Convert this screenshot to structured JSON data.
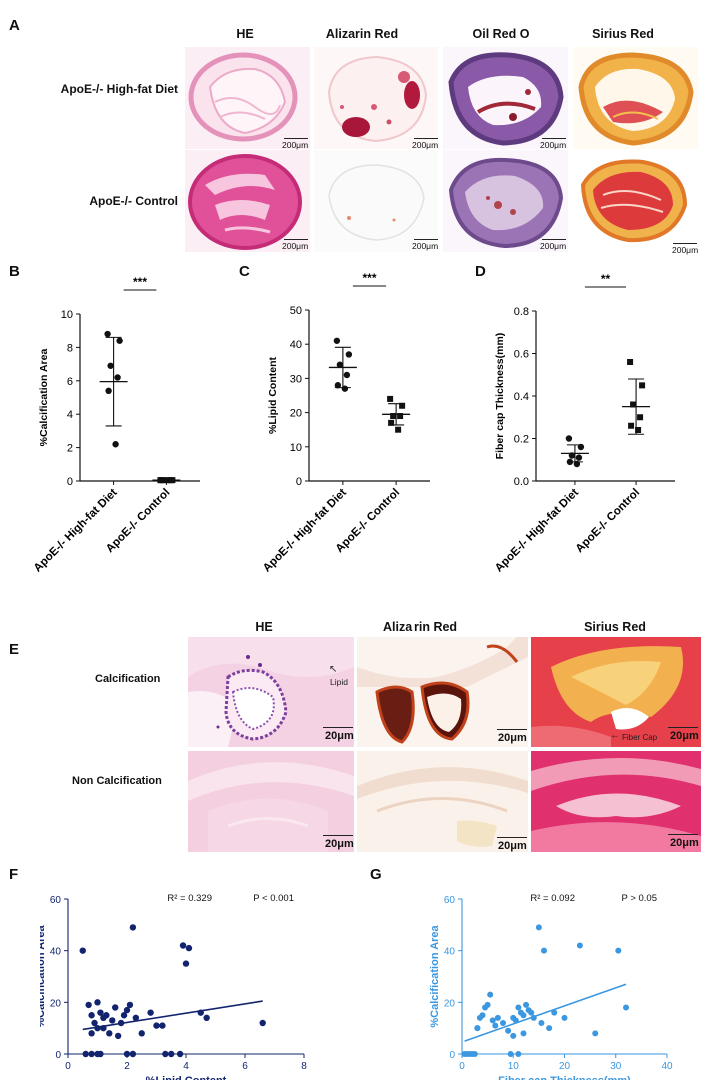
{
  "panel_letters": {
    "a": "A",
    "b": "B",
    "c": "C",
    "d": "D",
    "e": "E",
    "f": "F",
    "g": "G"
  },
  "panel_a": {
    "columns": [
      "HE",
      "Alizarin Red",
      "Oil Red O",
      "Sirius Red"
    ],
    "rows": [
      "ApoE-/- High-fat Diet",
      "ApoE-/- Control"
    ],
    "scale_label": "200μm"
  },
  "panel_e": {
    "columns": [
      "HE",
      "Aliza",
      "rin Red",
      "Sirius Red"
    ],
    "rows": [
      "Calcification",
      "Non Calcification"
    ],
    "scale_label": "20μm",
    "annotations": {
      "lipid": "Lipid",
      "fiber_cap": "Fiber Cap"
    }
  },
  "colors": {
    "he": "#e66da8",
    "alizarin": "#b0102a",
    "oilred": "#7a4a96",
    "sirius": "#d9302f",
    "navy": "#12246e",
    "lightblue": "#3b97e0"
  },
  "chart_data": [
    {
      "id": "B",
      "type": "scatter",
      "categories": [
        "ApoE-/- High-fat Diet",
        "ApoE-/- Control"
      ],
      "ylabel": "%Calcification Area",
      "ylim": [
        0,
        10
      ],
      "yticks": [
        "0",
        "2",
        "4",
        "6",
        "8",
        "10"
      ],
      "groups": [
        {
          "marker": "circle",
          "points": [
            8.8,
            8.4,
            6.9,
            6.2,
            5.4,
            2.2
          ],
          "mean": 5.95,
          "sd_low": 3.3,
          "sd_high": 8.6
        },
        {
          "marker": "square",
          "points": [
            0.05,
            0.05,
            0.05,
            0.05,
            0.05,
            0.05
          ],
          "mean": 0.05,
          "sd_low": 0.0,
          "sd_high": 0.1
        }
      ],
      "significance": "***"
    },
    {
      "id": "C",
      "type": "scatter",
      "categories": [
        "ApoE-/- High-fat Diet",
        "ApoE-/- Control"
      ],
      "ylabel": "%Lipid Content",
      "ylim": [
        0,
        50
      ],
      "yticks": [
        "0",
        "10",
        "20",
        "30",
        "40",
        "50"
      ],
      "groups": [
        {
          "marker": "circle",
          "points": [
            41,
            37,
            34,
            31,
            28,
            27
          ],
          "mean": 33.2,
          "sd_low": 27.3,
          "sd_high": 39.1
        },
        {
          "marker": "square",
          "points": [
            24,
            22,
            19,
            19,
            17,
            15
          ],
          "mean": 19.5,
          "sd_low": 16.4,
          "sd_high": 22.6
        }
      ],
      "significance": "***"
    },
    {
      "id": "D",
      "type": "scatter",
      "categories": [
        "ApoE-/- High-fat Diet",
        "ApoE-/- Control"
      ],
      "ylabel": "Fiber cap Thickness(mm)",
      "ylim": [
        0,
        0.8
      ],
      "yticks": [
        "0.0",
        "0.2",
        "0.4",
        "0.6",
        "0.8"
      ],
      "groups": [
        {
          "marker": "circle",
          "points": [
            0.2,
            0.16,
            0.12,
            0.11,
            0.09,
            0.08
          ],
          "mean": 0.13,
          "sd_low": 0.09,
          "sd_high": 0.17
        },
        {
          "marker": "square",
          "points": [
            0.56,
            0.45,
            0.36,
            0.3,
            0.26,
            0.24
          ],
          "mean": 0.35,
          "sd_low": 0.22,
          "sd_high": 0.48
        }
      ],
      "significance": "**"
    },
    {
      "id": "F",
      "type": "scatter",
      "xlabel": "%Lipid Content",
      "ylabel": "%Calcification Area",
      "xlim": [
        0,
        8
      ],
      "ylim": [
        0,
        60
      ],
      "xticks": [
        "0",
        "2",
        "4",
        "6",
        "8"
      ],
      "yticks": [
        "0",
        "20",
        "40",
        "60"
      ],
      "stat_r2": "R² = 0.329",
      "stat_p": "P < 0.001",
      "fit": [
        [
          0.5,
          9.5
        ],
        [
          6.6,
          20.5
        ]
      ],
      "x": [
        0.5,
        0.7,
        0.8,
        0.9,
        1.0,
        1.1,
        1.2,
        0.6,
        0.8,
        1.3,
        1.5,
        1.6,
        1.0,
        1.2,
        1.4,
        1.8,
        2.0,
        2.1,
        2.2,
        1.9,
        2.3,
        2.5,
        2.8,
        3.0,
        3.2,
        2.2,
        3.5,
        4.0,
        3.9,
        4.1,
        4.5,
        4.7,
        6.6,
        0.8,
        1.0,
        1.1,
        1.7,
        2.0,
        3.3,
        3.8
      ],
      "y": [
        40,
        19,
        15,
        12,
        10,
        16,
        14,
        0,
        0,
        15,
        13,
        18,
        20,
        10,
        8,
        12,
        17,
        19,
        49,
        15,
        14,
        8,
        16,
        11,
        11,
        0,
        0,
        35,
        42,
        41,
        16,
        14,
        12,
        8,
        0,
        0,
        7,
        0,
        0,
        0
      ]
    },
    {
      "id": "G",
      "type": "scatter",
      "xlabel": "Fiber cap Thickness(mm)",
      "ylabel": "%Calcification Area",
      "xlim": [
        0,
        40
      ],
      "ylim": [
        0,
        60
      ],
      "xticks": [
        "0",
        "10",
        "20",
        "30",
        "40"
      ],
      "yticks": [
        "0",
        "20",
        "40",
        "60"
      ],
      "stat_r2": "R² = 0.092",
      "stat_p": "P > 0.05",
      "fit": [
        [
          0.5,
          5
        ],
        [
          32,
          27
        ]
      ],
      "x": [
        0.5,
        1.0,
        1.5,
        2.0,
        2.5,
        3.0,
        3.5,
        4.0,
        4.5,
        5.0,
        5.5,
        6.0,
        6.5,
        7.0,
        8.0,
        9.0,
        10.0,
        10.5,
        11.0,
        11.5,
        12.0,
        12.5,
        13.0,
        13.5,
        14.0,
        15.0,
        16.0,
        17.0,
        18.0,
        20.0,
        23.0,
        26.0,
        30.5,
        32.0,
        3.0,
        9.5,
        11.0,
        12.0,
        15.5,
        10.0
      ],
      "y": [
        0,
        0,
        0,
        0,
        0,
        10,
        14,
        15,
        18,
        19,
        23,
        13,
        11,
        14,
        12,
        9,
        14,
        13,
        18,
        16,
        15,
        19,
        17,
        16,
        14,
        49,
        40,
        10,
        16,
        14,
        42,
        8,
        40,
        18,
        10,
        0,
        0,
        8,
        12,
        7
      ]
    }
  ]
}
